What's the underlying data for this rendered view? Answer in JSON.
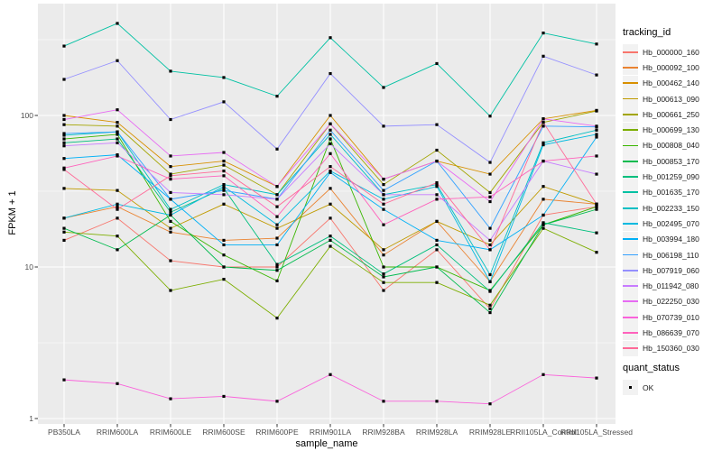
{
  "chart_data": {
    "type": "line",
    "title": "",
    "xlabel": "sample_name",
    "ylabel": "FPKM + 1",
    "x_scale": "categorical",
    "y_scale": "log10",
    "y_ticks": [
      1,
      10,
      100
    ],
    "y_minor_gridlines": [
      3.162,
      31.62,
      316.2
    ],
    "ylim": [
      1,
      450
    ],
    "grid": "major-and-minor, white on gray panel",
    "panel_bg": "#EBEBEB",
    "grid_color": "#FFFFFF",
    "tick_color": "#333333",
    "point_marker": "filled-black-square",
    "categories": [
      "PB350LA",
      "RRIM600LA",
      "RRIM600LE",
      "RRIM600SE",
      "RRIM600PE",
      "RRIM901LA",
      "RRIM928BA",
      "RRIM928LA",
      "RRIM928LE",
      "RRII105LA_Control",
      "RRII105LA_Stressed"
    ],
    "legend": {
      "title": "tracking_id",
      "position": "right"
    },
    "quant_legend": {
      "title": "quant_status",
      "items": [
        {
          "label": "OK",
          "marker": "black-square"
        }
      ]
    },
    "series": [
      {
        "name": "Hb_000000_160",
        "color": "#F8766D",
        "values": [
          15,
          21,
          11,
          10,
          10,
          21,
          7,
          13,
          5.3,
          22,
          25
        ]
      },
      {
        "name": "Hb_000092_100",
        "color": "#EA8331",
        "values": [
          21,
          25,
          17,
          15,
          15.5,
          33,
          12,
          20,
          8,
          28,
          26
        ]
      },
      {
        "name": "Hb_000462_140",
        "color": "#D89000",
        "values": [
          100,
          90,
          46,
          50,
          34,
          100,
          38,
          50,
          41,
          95,
          108
        ]
      },
      {
        "name": "Hb_000613_090",
        "color": "#C09B00",
        "values": [
          33,
          32,
          18,
          26,
          18,
          26,
          13,
          20,
          14,
          34,
          26
        ]
      },
      {
        "name": "Hb_000661_250",
        "color": "#A3A500",
        "values": [
          87,
          85,
          41,
          47,
          30,
          88,
          35,
          59,
          31,
          90,
          107
        ]
      },
      {
        "name": "Hb_000699_130",
        "color": "#7CAE00",
        "values": [
          17,
          16,
          7,
          8.3,
          4.6,
          13.7,
          7.9,
          7.9,
          5.6,
          18,
          12.5
        ]
      },
      {
        "name": "Hb_000808_040",
        "color": "#39B600",
        "values": [
          70,
          75,
          20,
          12,
          8.1,
          70,
          10,
          10,
          7,
          19,
          25
        ]
      },
      {
        "name": "Hb_000853_170",
        "color": "#00BB4E",
        "values": [
          18,
          13,
          22,
          10,
          9.5,
          15,
          8.6,
          10,
          5,
          19,
          24
        ]
      },
      {
        "name": "Hb_001259_090",
        "color": "#00BF7D",
        "values": [
          66,
          70,
          23,
          33,
          10.4,
          16,
          9,
          14,
          6.9,
          19.6,
          16.8
        ]
      },
      {
        "name": "Hb_001635_170",
        "color": "#00C1A3",
        "values": [
          287,
          405,
          196,
          178,
          134,
          326,
          153,
          220,
          99,
          350,
          296
        ]
      },
      {
        "name": "Hb_002233_150",
        "color": "#00BFC4",
        "values": [
          74,
          78,
          24,
          35,
          30,
          75,
          30,
          35,
          8.9,
          66,
          80
        ]
      },
      {
        "name": "Hb_002495_070",
        "color": "#00BAE0",
        "values": [
          21,
          26,
          22,
          34,
          19,
          43,
          28,
          34,
          8,
          64,
          75
        ]
      },
      {
        "name": "Hb_003994_180",
        "color": "#00B0F6",
        "values": [
          52,
          55,
          28,
          14,
          14,
          42,
          24,
          15,
          13,
          22,
          72
        ]
      },
      {
        "name": "Hb_006198_110",
        "color": "#35A2FF",
        "values": [
          76,
          78,
          28,
          32,
          28,
          80,
          32,
          50,
          18,
          85,
          84
        ]
      },
      {
        "name": "Hb_007919_060",
        "color": "#9590FF",
        "values": [
          173,
          230,
          94,
          123,
          60,
          189,
          85,
          87,
          49,
          246,
          185
        ]
      },
      {
        "name": "Hb_011942_080",
        "color": "#C77CFF",
        "values": [
          63,
          66,
          31,
          30,
          28,
          65,
          30,
          30,
          15,
          50,
          41
        ]
      },
      {
        "name": "Hb_022250_030",
        "color": "#E76BF3",
        "values": [
          94,
          109,
          54,
          57,
          34,
          88,
          38,
          50,
          27,
          95,
          85
        ]
      },
      {
        "name": "Hb_070739_010",
        "color": "#FA62DB",
        "values": [
          1.8,
          1.7,
          1.35,
          1.4,
          1.3,
          1.95,
          1.3,
          1.3,
          1.25,
          1.95,
          1.85
        ]
      },
      {
        "name": "Hb_086639_070",
        "color": "#FF62BC",
        "values": [
          45,
          54,
          38,
          40,
          21.5,
          56,
          19,
          28,
          29,
          50,
          54
        ]
      },
      {
        "name": "Hb_150360_030",
        "color": "#FF6A98",
        "values": [
          44,
          24,
          40,
          43,
          25,
          46,
          26,
          36,
          13,
          90,
          26
        ]
      }
    ]
  }
}
